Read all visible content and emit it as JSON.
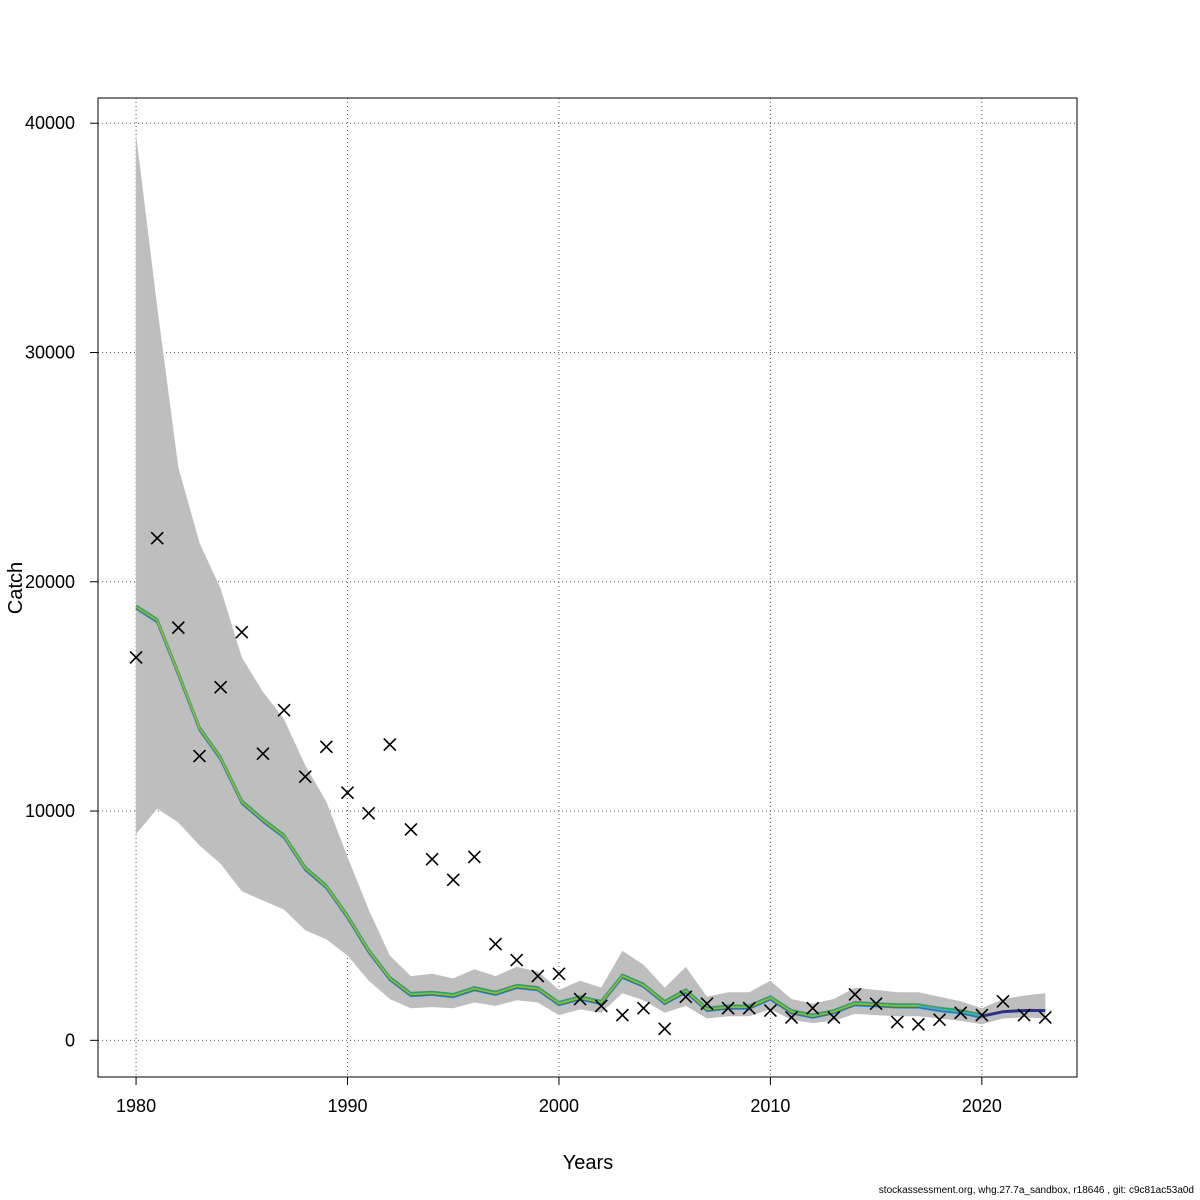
{
  "chart_data": {
    "type": "line",
    "xlabel": "Years",
    "ylabel": "Catch",
    "xlim": [
      1978.2,
      2024.5
    ],
    "ylim": [
      -1600,
      41100
    ],
    "x_ticks": [
      1980,
      1990,
      2000,
      2010,
      2020
    ],
    "y_ticks": [
      0,
      10000,
      20000,
      30000,
      40000
    ],
    "grid": true,
    "band_color": "#bebebe",
    "observed_marker": "x",
    "years": [
      1980,
      1981,
      1982,
      1983,
      1984,
      1985,
      1986,
      1987,
      1988,
      1989,
      1990,
      1991,
      1992,
      1993,
      1994,
      1995,
      1996,
      1997,
      1998,
      1999,
      2000,
      2001,
      2002,
      2003,
      2004,
      2005,
      2006,
      2007,
      2008,
      2009,
      2010,
      2011,
      2012,
      2013,
      2014,
      2015,
      2016,
      2017,
      2018,
      2019,
      2020,
      2021,
      2022,
      2023
    ],
    "estimate": [
      18900,
      18300,
      16000,
      13600,
      12300,
      10400,
      9600,
      8900,
      7500,
      6700,
      5400,
      3900,
      2700,
      2000,
      2050,
      1950,
      2250,
      2050,
      2350,
      2250,
      1600,
      1850,
      1650,
      2800,
      2400,
      1650,
      2150,
      1350,
      1450,
      1450,
      1850,
      1250,
      1050,
      1250,
      1600,
      1550,
      1500,
      1500,
      1350,
      1250,
      1050,
      1250,
      1300,
      1300
    ],
    "upper": [
      39500,
      32000,
      25000,
      21700,
      19700,
      16700,
      15200,
      14000,
      12000,
      10400,
      8000,
      5700,
      3700,
      2800,
      2900,
      2700,
      3100,
      2800,
      3200,
      3000,
      2200,
      2600,
      2300,
      3900,
      3300,
      2300,
      3200,
      1900,
      2100,
      2100,
      2600,
      1800,
      1600,
      1800,
      2300,
      2200,
      2100,
      2100,
      1900,
      1700,
      1400,
      1800,
      1950,
      2050
    ],
    "lower": [
      9000,
      10100,
      9500,
      8500,
      7700,
      6500,
      6100,
      5700,
      4800,
      4400,
      3700,
      2600,
      1800,
      1400,
      1450,
      1400,
      1650,
      1500,
      1750,
      1650,
      1100,
      1350,
      1200,
      2050,
      1750,
      1200,
      1500,
      950,
      1050,
      1050,
      1350,
      900,
      750,
      850,
      1150,
      1100,
      1050,
      1050,
      950,
      850,
      700,
      950,
      1000,
      950
    ],
    "observed": [
      16700,
      21900,
      18000,
      12400,
      15400,
      17800,
      12500,
      14400,
      11500,
      12800,
      10800,
      9900,
      12900,
      9200,
      7900,
      7000,
      8000,
      4200,
      3500,
      2800,
      2900,
      1800,
      1500,
      1100,
      1400,
      500,
      1900,
      1600,
      1400,
      1400,
      1300,
      1000,
      1400,
      1000,
      2000,
      1600,
      800,
      700,
      900,
      1200,
      1100,
      1700,
      1100,
      1000
    ],
    "forecast_from_year": 2020,
    "series_colors": [
      "#2ca25f",
      "#2c7fb8",
      "#3b5998",
      "#7fbc41"
    ],
    "forecast_color": "#2a2f8a",
    "recent_color": "#3fa9c9"
  },
  "footer": "stockassessment.org, whg.27.7a_sandbox, r18646 , git: c9c81ac53a0d"
}
